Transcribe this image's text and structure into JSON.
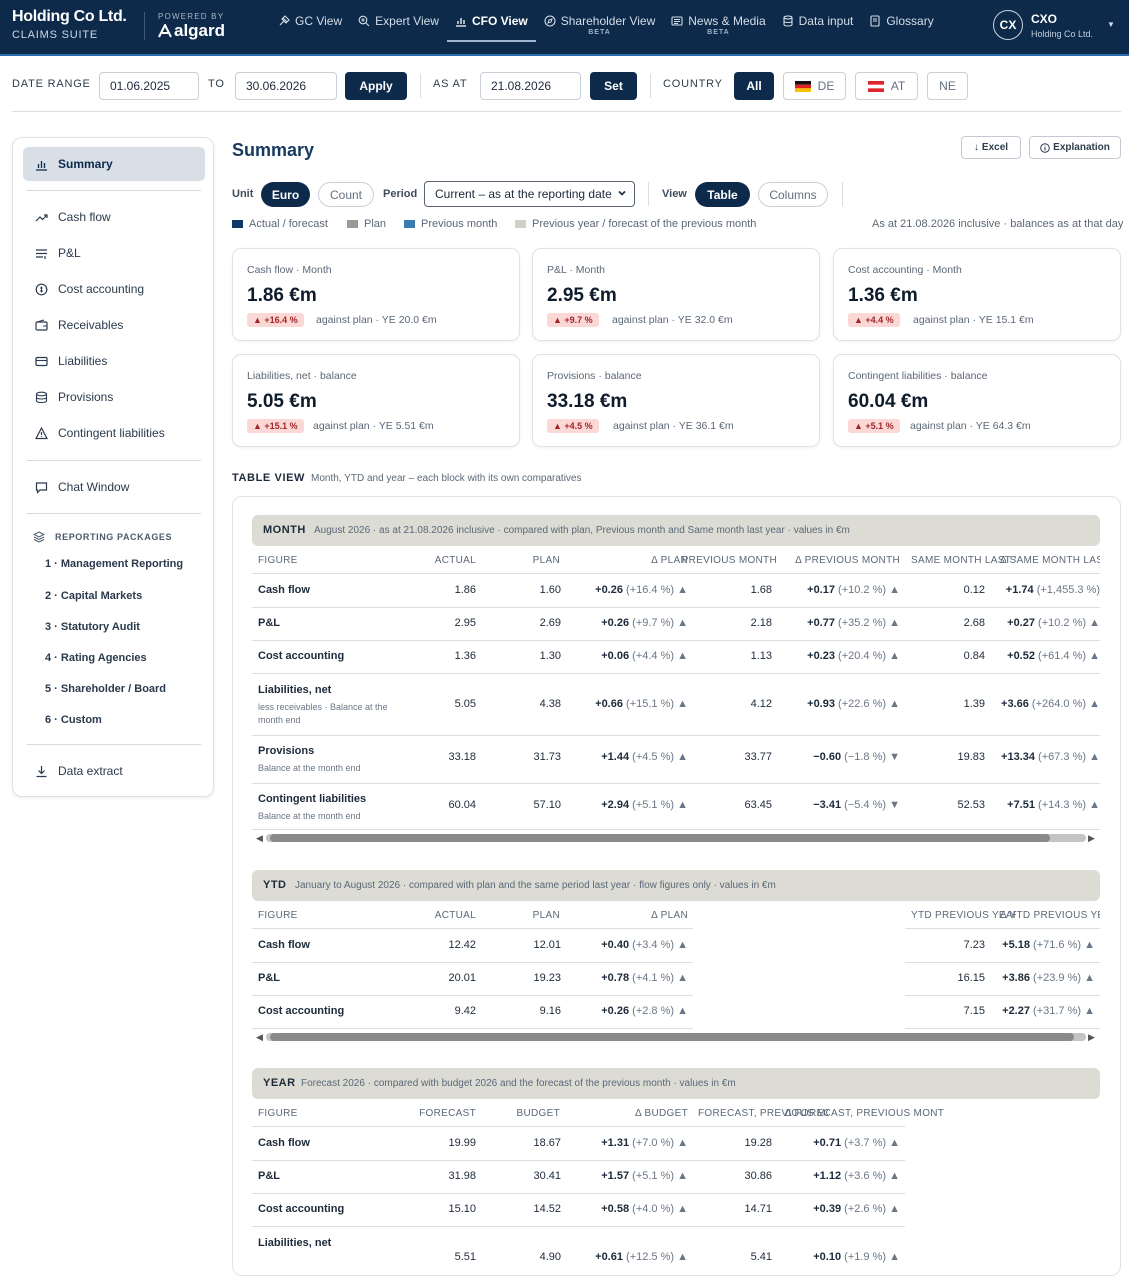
{
  "brand": {
    "title": "Holding Co Ltd.",
    "subtitle": "CLAIMS SUITE",
    "powered_by": "POWERED BY",
    "logo_text": "algard"
  },
  "nav": [
    {
      "label": "GC View"
    },
    {
      "label": "Expert View"
    },
    {
      "label": "CFO View"
    },
    {
      "label": "Shareholder View",
      "badge": "BETA"
    },
    {
      "label": "News & Media",
      "badge": "BETA"
    },
    {
      "label": "Data input"
    },
    {
      "label": "Glossary"
    }
  ],
  "user": {
    "initials": "CX",
    "name": "CXO",
    "company": "Holding Co Ltd."
  },
  "filters": {
    "date_range_label": "DATE RANGE",
    "from": "01.06.2025",
    "to_label": "TO",
    "to": "30.06.2026",
    "apply": "Apply",
    "as_at_label": "AS AT",
    "as_at": "21.08.2026",
    "set": "Set",
    "country_label": "COUNTRY",
    "countries": [
      "All",
      "DE",
      "AT",
      "NE"
    ]
  },
  "sidebar": {
    "items": [
      "Summary",
      "Cash flow",
      "P&L",
      "Cost accounting",
      "Receivables",
      "Liabilities",
      "Provisions",
      "Contingent liabilities"
    ],
    "chat": "Chat Window",
    "packages_head": "REPORTING PACKAGES",
    "packages": [
      "1 · Management Reporting",
      "2 · Capital Markets",
      "3 · Statutory Audit",
      "4 · Rating Agencies",
      "5 · Shareholder / Board",
      "6 · Custom"
    ],
    "extract": "Data extract"
  },
  "summary": {
    "title": "Summary",
    "excel": "Excel",
    "explanation": "Explanation",
    "unit_label": "Unit",
    "unit_options": [
      "Euro",
      "Count"
    ],
    "period_label": "Period",
    "period_value": "Current – as at the reporting date",
    "view_label": "View",
    "view_options": [
      "Table",
      "Columns"
    ],
    "legend": [
      {
        "label": "Actual / forecast",
        "color": "#0d3a66"
      },
      {
        "label": "Plan",
        "color": "#9a9a92"
      },
      {
        "label": "Previous month",
        "color": "#3d7cb3"
      },
      {
        "label": "Previous year / forecast of the previous month",
        "color": "#cfcfc8"
      }
    ],
    "as_at_note": "As at 21.08.2026 inclusive · balances as at that day"
  },
  "kpis": [
    {
      "title": "Cash flow · Month",
      "value": "1.86 €m",
      "badge": "▲ +16.4 %",
      "note": "against plan · YE 20.0 €m"
    },
    {
      "title": "P&L · Month",
      "value": "2.95 €m",
      "badge": "▲ +9.7 %",
      "note": "against plan · YE 32.0 €m"
    },
    {
      "title": "Cost accounting · Month",
      "value": "1.36 €m",
      "badge": "▲ +4.4 %",
      "note": "against plan · YE 15.1 €m"
    },
    {
      "title": "Liabilities, net · balance",
      "value": "5.05 €m",
      "badge": "▲ +15.1 %",
      "note": "against plan · YE 5.51 €m"
    },
    {
      "title": "Provisions · balance",
      "value": "33.18 €m",
      "badge": "▲ +4.5 %",
      "note": "against plan · YE 36.1 €m"
    },
    {
      "title": "Contingent liabilities · balance",
      "value": "60.04 €m",
      "badge": "▲ +5.1 %",
      "note": "against plan · YE 64.3 €m"
    }
  ],
  "table_view": {
    "title": "TABLE VIEW",
    "subtitle": "Month, YTD and year – each block with its own comparatives"
  },
  "month": {
    "title": "MONTH",
    "subtitle": "August 2026 · as at 21.08.2026 inclusive · compared with plan, Previous month and Same month last year · values in €m",
    "headers": [
      "FIGURE",
      "ACTUAL",
      "PLAN",
      "Δ PLAN",
      "PREVIOUS MONTH",
      "Δ PREVIOUS MONTH",
      "SAME MONTH LAST YEAR",
      "Δ SAME MONTH LAST YEAR"
    ],
    "rows": [
      {
        "figure": "Cash flow",
        "sub": "",
        "actual": "1.86",
        "plan": "1.60",
        "d_plan": "+0.26",
        "d_plan_pct": "(+16.4 %)",
        "d_plan_arrow": "▲",
        "prev": "1.68",
        "d_prev": "+0.17",
        "d_prev_pct": "(+10.2 %)",
        "d_prev_arrow": "▲",
        "ly": "0.12",
        "d_ly": "+1.74",
        "d_ly_pct": "(+1,455.3 %)",
        "d_ly_arrow": ""
      },
      {
        "figure": "P&L",
        "sub": "",
        "actual": "2.95",
        "plan": "2.69",
        "d_plan": "+0.26",
        "d_plan_pct": "(+9.7 %)",
        "d_plan_arrow": "▲",
        "prev": "2.18",
        "d_prev": "+0.77",
        "d_prev_pct": "(+35.2 %)",
        "d_prev_arrow": "▲",
        "ly": "2.68",
        "d_ly": "+0.27",
        "d_ly_pct": "(+10.2 %)",
        "d_ly_arrow": "▲"
      },
      {
        "figure": "Cost accounting",
        "sub": "",
        "actual": "1.36",
        "plan": "1.30",
        "d_plan": "+0.06",
        "d_plan_pct": "(+4.4 %)",
        "d_plan_arrow": "▲",
        "prev": "1.13",
        "d_prev": "+0.23",
        "d_prev_pct": "(+20.4 %)",
        "d_prev_arrow": "▲",
        "ly": "0.84",
        "d_ly": "+0.52",
        "d_ly_pct": "(+61.4 %)",
        "d_ly_arrow": "▲"
      },
      {
        "figure": "Liabilities, net",
        "sub": "less receivables · Balance at the month end",
        "actual": "5.05",
        "plan": "4.38",
        "d_plan": "+0.66",
        "d_plan_pct": "(+15.1 %)",
        "d_plan_arrow": "▲",
        "prev": "4.12",
        "d_prev": "+0.93",
        "d_prev_pct": "(+22.6 %)",
        "d_prev_arrow": "▲",
        "ly": "1.39",
        "d_ly": "+3.66",
        "d_ly_pct": "(+264.0 %)",
        "d_ly_arrow": "▲"
      },
      {
        "figure": "Provisions",
        "sub": "Balance at the month end",
        "actual": "33.18",
        "plan": "31.73",
        "d_plan": "+1.44",
        "d_plan_pct": "(+4.5 %)",
        "d_plan_arrow": "▲",
        "prev": "33.77",
        "d_prev": "−0.60",
        "d_prev_pct": "(−1.8 %)",
        "d_prev_arrow": "▼",
        "ly": "19.83",
        "d_ly": "+13.34",
        "d_ly_pct": "(+67.3 %)",
        "d_ly_arrow": "▲"
      },
      {
        "figure": "Contingent liabilities",
        "sub": "Balance at the month end",
        "actual": "60.04",
        "plan": "57.10",
        "d_plan": "+2.94",
        "d_plan_pct": "(+5.1 %)",
        "d_plan_arrow": "▲",
        "prev": "63.45",
        "d_prev": "−3.41",
        "d_prev_pct": "(−5.4 %)",
        "d_prev_arrow": "▼",
        "ly": "52.53",
        "d_ly": "+7.51",
        "d_ly_pct": "(+14.3 %)",
        "d_ly_arrow": "▲"
      }
    ]
  },
  "ytd": {
    "title": "YTD",
    "subtitle": "January to August 2026 · compared with plan and the same period last year · flow figures only · values in €m",
    "headers": [
      "FIGURE",
      "ACTUAL",
      "PLAN",
      "Δ PLAN",
      "YTD PREVIOUS YEAR",
      "Δ YTD PREVIOUS YEAR"
    ],
    "rows": [
      {
        "figure": "Cash flow",
        "actual": "12.42",
        "plan": "12.01",
        "d_plan": "+0.40",
        "d_plan_pct": "(+3.4 %)",
        "d_plan_arrow": "▲",
        "py": "7.23",
        "d_py": "+5.18",
        "d_py_pct": "(+71.6 %)",
        "d_py_arrow": "▲"
      },
      {
        "figure": "P&L",
        "actual": "20.01",
        "plan": "19.23",
        "d_plan": "+0.78",
        "d_plan_pct": "(+4.1 %)",
        "d_plan_arrow": "▲",
        "py": "16.15",
        "d_py": "+3.86",
        "d_py_pct": "(+23.9 %)",
        "d_py_arrow": "▲"
      },
      {
        "figure": "Cost accounting",
        "actual": "9.42",
        "plan": "9.16",
        "d_plan": "+0.26",
        "d_plan_pct": "(+2.8 %)",
        "d_plan_arrow": "▲",
        "py": "7.15",
        "d_py": "+2.27",
        "d_py_pct": "(+31.7 %)",
        "d_py_arrow": "▲"
      }
    ]
  },
  "year": {
    "title": "YEAR",
    "subtitle": "Forecast 2026 · compared with budget 2026 and the forecast of the previous month · values in €m",
    "headers": [
      "FIGURE",
      "FORECAST",
      "BUDGET",
      "Δ BUDGET",
      "FORECAST, PREVIOUS MONTH",
      "Δ FORECAST, PREVIOUS MONTH"
    ],
    "rows": [
      {
        "figure": "Cash flow",
        "fc": "19.99",
        "budget": "18.67",
        "d_b": "+1.31",
        "d_b_pct": "(+7.0 %)",
        "d_b_arrow": "▲",
        "pm": "19.28",
        "d_pm": "+0.71",
        "d_pm_pct": "(+3.7 %)",
        "d_pm_arrow": "▲"
      },
      {
        "figure": "P&L",
        "fc": "31.98",
        "budget": "30.41",
        "d_b": "+1.57",
        "d_b_pct": "(+5.1 %)",
        "d_b_arrow": "▲",
        "pm": "30.86",
        "d_pm": "+1.12",
        "d_pm_pct": "(+3.6 %)",
        "d_pm_arrow": "▲"
      },
      {
        "figure": "Cost accounting",
        "fc": "15.10",
        "budget": "14.52",
        "d_b": "+0.58",
        "d_b_pct": "(+4.0 %)",
        "d_b_arrow": "▲",
        "pm": "14.71",
        "d_pm": "+0.39",
        "d_pm_pct": "(+2.6 %)",
        "d_pm_arrow": "▲"
      },
      {
        "figure": "Liabilities, net",
        "fc": "5.51",
        "budget": "4.90",
        "d_b": "+0.61",
        "d_b_pct": "(+12.5 %)",
        "d_b_arrow": "▲",
        "pm": "5.41",
        "d_pm": "+0.10",
        "d_pm_pct": "(+1.9 %)",
        "d_pm_arrow": "▲"
      }
    ]
  }
}
